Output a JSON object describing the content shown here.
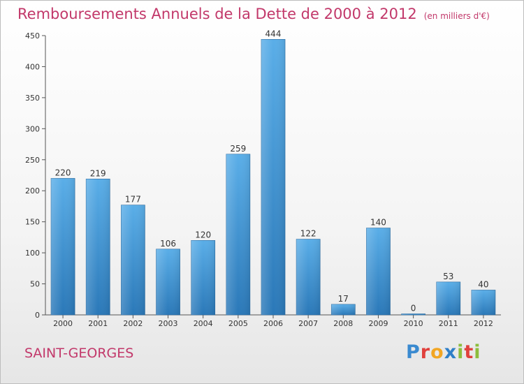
{
  "title": "Remboursements Annuels de la Dette de 2000 à 2012",
  "unit_note": "(en milliers d'€)",
  "commune": "SAINT-GEORGES",
  "logo": {
    "text": "Proxiti",
    "letters": [
      "P",
      "r",
      "o",
      "x",
      "i",
      "t",
      "i"
    ],
    "colors": [
      "#3a8ad0",
      "#e0403c",
      "#f2a623",
      "#2f7fc8",
      "#8cbd3c",
      "#e0403c",
      "#8cbd3c"
    ]
  },
  "colors": {
    "bar_top": "#5aaee8",
    "bar_bottom": "#2a78b8",
    "text": "#c2386a"
  },
  "chart_data": {
    "type": "bar",
    "title": "Remboursements Annuels de la Dette de 2000 à 2012",
    "categories": [
      "2000",
      "2001",
      "2002",
      "2003",
      "2004",
      "2005",
      "2006",
      "2007",
      "2008",
      "2009",
      "2010",
      "2011",
      "2012"
    ],
    "values": [
      220,
      219,
      177,
      106,
      120,
      259,
      444,
      122,
      17,
      140,
      0,
      53,
      40
    ],
    "data_labels": [
      "220",
      "219",
      "177",
      "106",
      "120",
      "259",
      "444",
      "122",
      "17",
      "140",
      "0",
      "53",
      "40"
    ],
    "ylim": [
      0,
      450
    ],
    "yticks": [
      0,
      50,
      100,
      150,
      200,
      250,
      300,
      350,
      400,
      450
    ],
    "grid": false,
    "xlabel": "",
    "ylabel": ""
  }
}
